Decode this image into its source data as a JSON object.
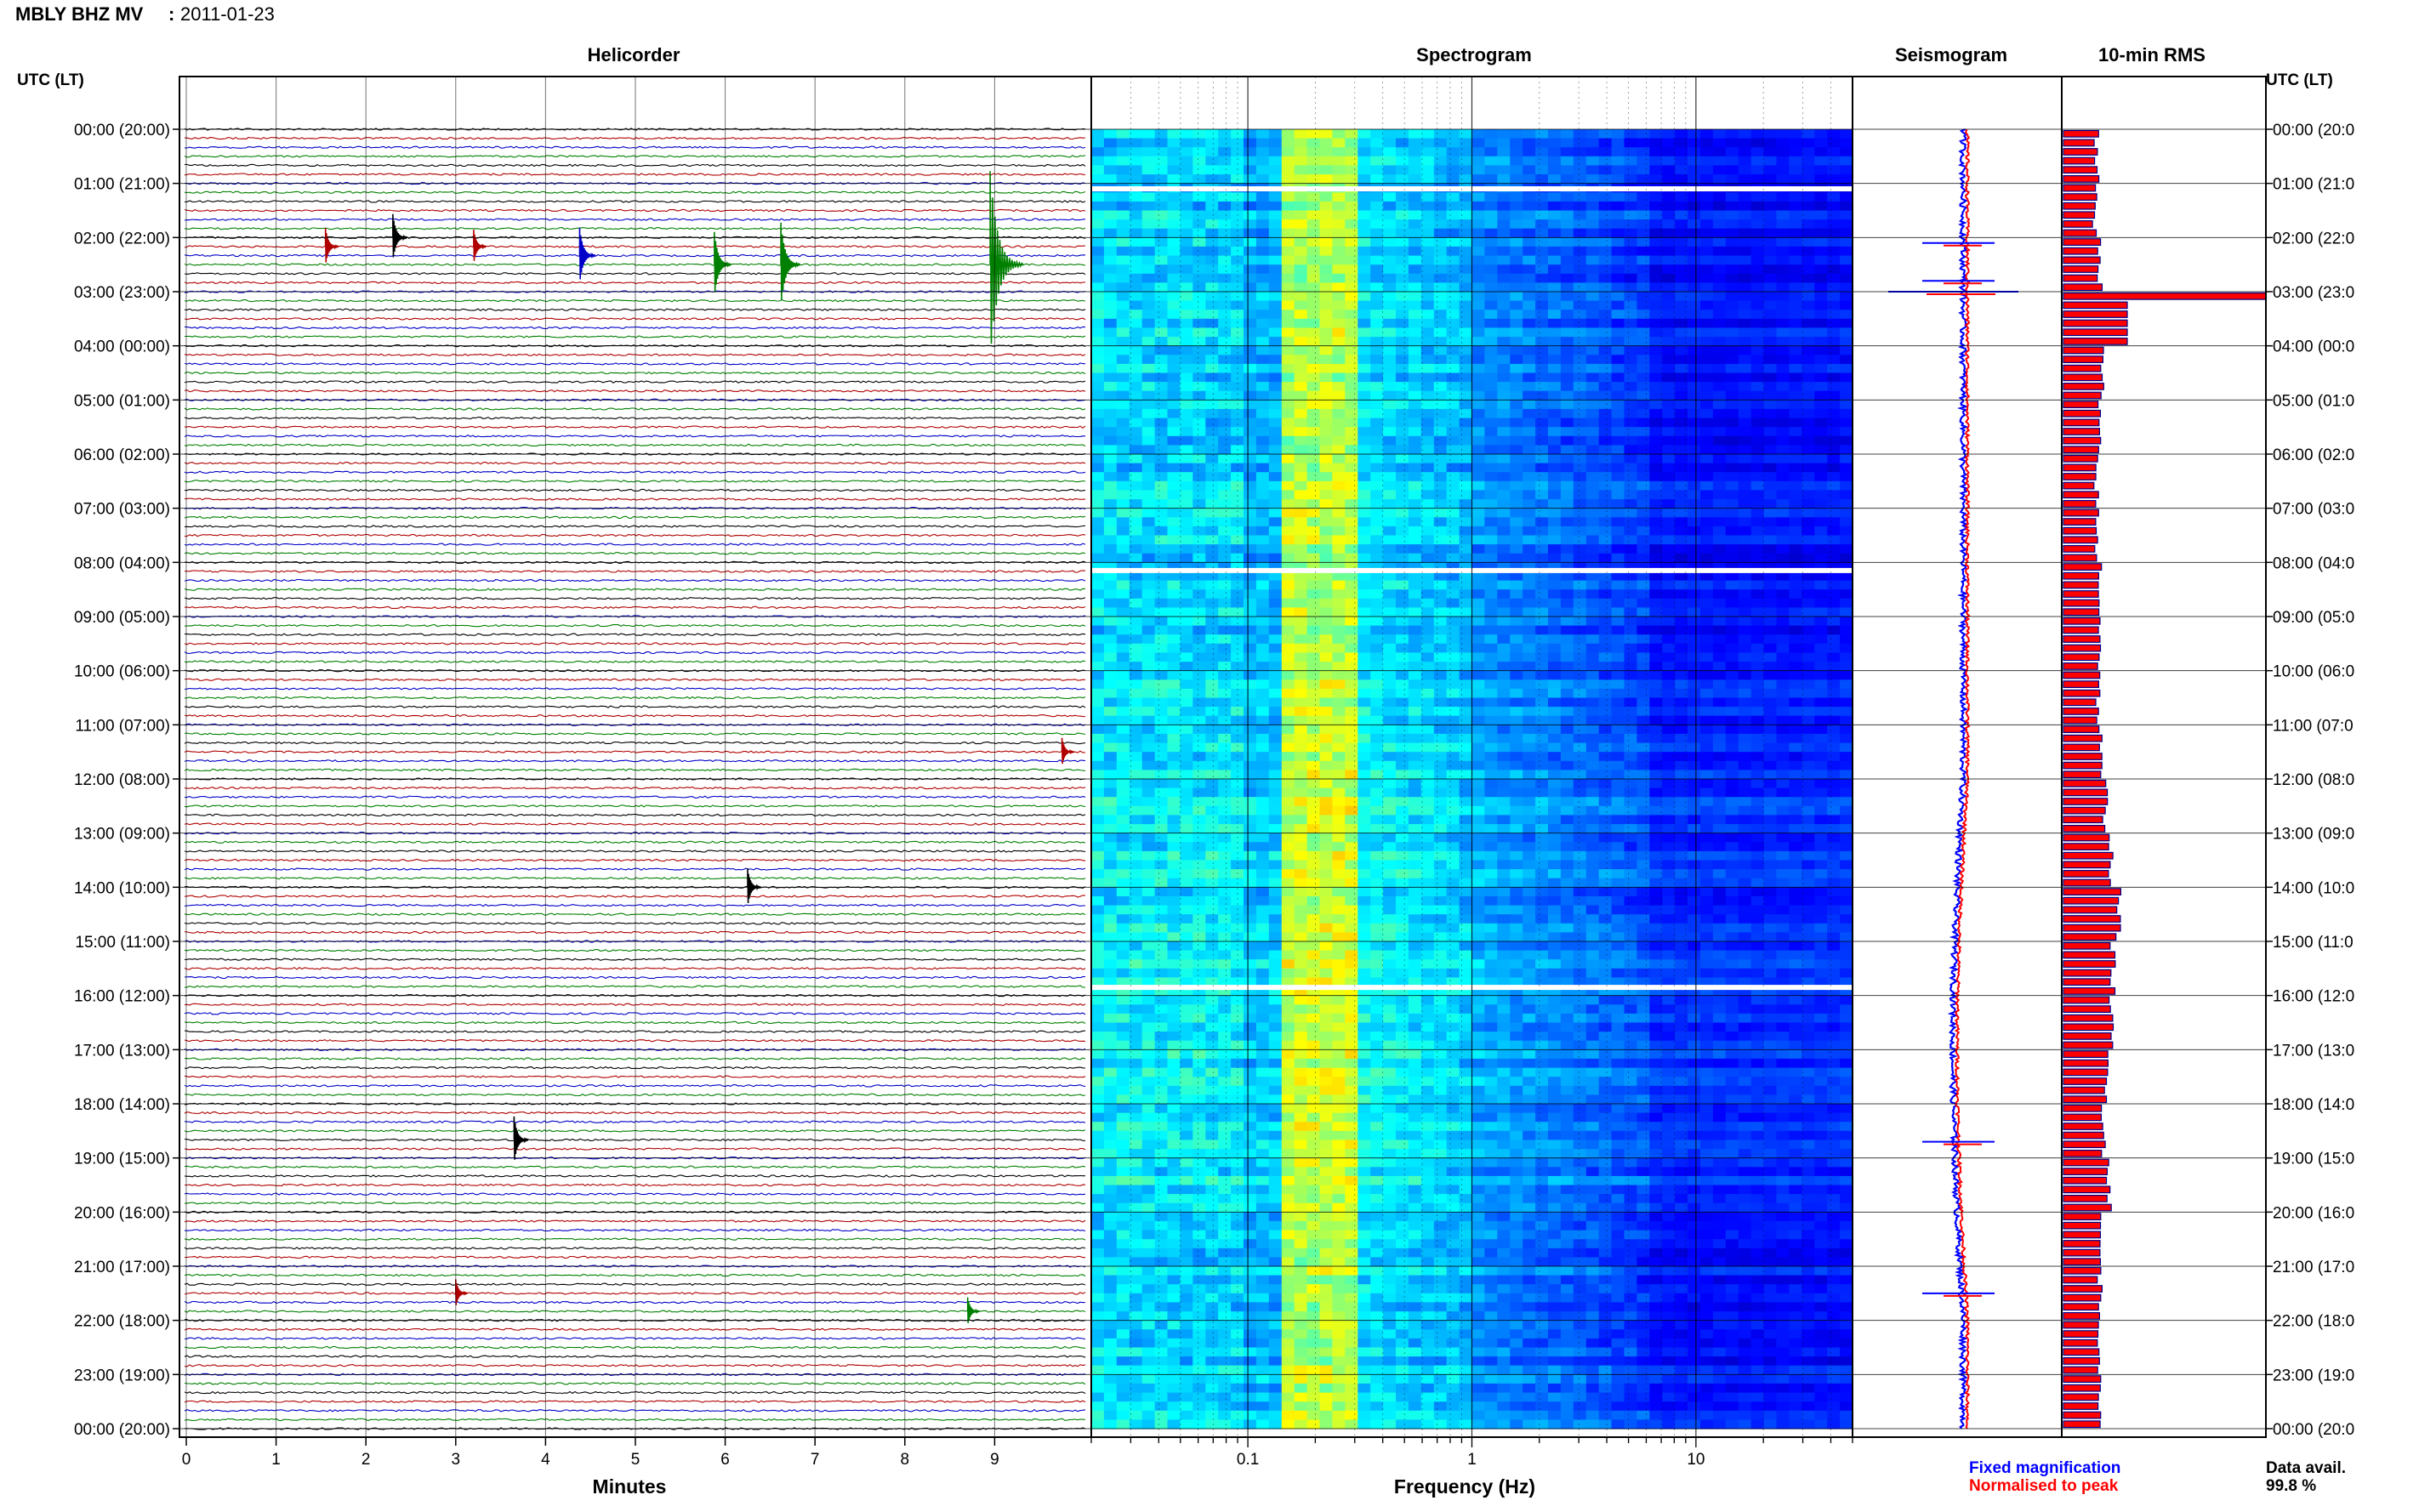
{
  "header": {
    "station": "MBLY BHZ MV",
    "separator": ":",
    "date": "2011-01-23"
  },
  "time_axis_label_left": "UTC (LT)",
  "time_axis_label_right": "UTC (LT)",
  "panels": {
    "helicorder": "Helicorder",
    "spectrogram": "Spectrogram",
    "seismogram": "Seismogram",
    "rms": "10-min RMS"
  },
  "footer": {
    "minutes_label": "Minutes",
    "frequency_label": "Frequency (Hz)",
    "legend_fixed": "Fixed magnification",
    "legend_normalised": "Normalised to peak",
    "data_avail_label": "Data avail.",
    "data_avail_value": "99.8 %"
  },
  "colors": {
    "trace_black": "#000000",
    "trace_red": "#b00000",
    "trace_blue": "#0000c8",
    "trace_green": "#008000",
    "fixed_magnification": "#0000ff",
    "normalised": "#ff0000",
    "rms_fill": "#ff0000",
    "rms_edge": "#00008b"
  },
  "chart_data": [
    {
      "type": "line",
      "panel": "Helicorder",
      "title": "Helicorder",
      "xlabel": "Minutes",
      "x_ticks": [
        "0",
        "1",
        "2",
        "3",
        "4",
        "5",
        "6",
        "7",
        "8",
        "9"
      ],
      "xlim": [
        0,
        10
      ],
      "time_labels_left": [
        "00:00 (20:00)",
        "01:00 (21:00)",
        "02:00 (22:00)",
        "03:00 (23:00)",
        "04:00 (00:00)",
        "05:00 (01:00)",
        "06:00 (02:00)",
        "07:00 (03:00)",
        "08:00 (04:00)",
        "09:00 (05:00)",
        "10:00 (06:00)",
        "11:00 (07:00)",
        "12:00 (08:00)",
        "13:00 (09:00)",
        "14:00 (10:00)",
        "15:00 (11:00)",
        "16:00 (12:00)",
        "17:00 (13:00)",
        "18:00 (14:00)",
        "19:00 (15:00)",
        "20:00 (16:00)",
        "21:00 (17:00)",
        "22:00 (18:00)",
        "23:00 (19:00)",
        "00:00 (20:00)"
      ],
      "time_labels_right": [
        "00:00 (20:0",
        "01:00 (21:0",
        "02:00 (22:0",
        "03:00 (23:0",
        "04:00 (00:0",
        "05:00 (01:0",
        "06:00 (02:0",
        "07:00 (03:0",
        "08:00 (04:0",
        "09:00 (05:0",
        "10:00 (06:0",
        "11:00 (07:0",
        "12:00 (08:0",
        "13:00 (09:0",
        "14:00 (10:0",
        "15:00 (11:0",
        "16:00 (12:0",
        "17:00 (13:0",
        "18:00 (14:0",
        "19:00 (15:0",
        "20:00 (16:0",
        "21:00 (17:0",
        "22:00 (18:0",
        "23:00 (19:0",
        "00:00 (20:0"
      ],
      "lines_per_hour": 6,
      "minutes_per_line": 10,
      "trace_color_cycle": [
        "black",
        "red",
        "blue",
        "green"
      ],
      "events": [
        {
          "hour": 2.45,
          "minute": 8.95,
          "amp": 1.0
        },
        {
          "hour": 2.45,
          "minute": 6.62,
          "amp": 0.45
        },
        {
          "hour": 2.45,
          "minute": 5.88,
          "amp": 0.35
        },
        {
          "hour": 2.28,
          "minute": 4.38,
          "amp": 0.3
        },
        {
          "hour": 2.0,
          "minute": 2.3,
          "amp": 0.25
        },
        {
          "hour": 2.12,
          "minute": 1.55,
          "amp": 0.2
        },
        {
          "hour": 2.12,
          "minute": 3.2,
          "amp": 0.18
        },
        {
          "hour": 18.65,
          "minute": 3.65,
          "amp": 0.25
        },
        {
          "hour": 13.95,
          "minute": 6.25,
          "amp": 0.2
        },
        {
          "hour": 11.55,
          "minute": 9.75,
          "amp": 0.15
        },
        {
          "hour": 21.45,
          "minute": 3.0,
          "amp": 0.15
        },
        {
          "hour": 21.78,
          "minute": 8.7,
          "amp": 0.15
        }
      ]
    },
    {
      "type": "heatmap",
      "panel": "Spectrogram",
      "title": "Spectrogram",
      "xlabel": "Frequency (Hz)",
      "x_scale": "log",
      "xlim": [
        0.02,
        50
      ],
      "x_tick_labels": [
        "0.1",
        "1",
        "10"
      ],
      "colormap": "jet",
      "dominant_band_hz": [
        0.15,
        0.3
      ],
      "gaps_hours": [
        1.1,
        8.15,
        15.85
      ]
    },
    {
      "type": "line",
      "panel": "Seismogram",
      "title": "Seismogram",
      "series": [
        {
          "name": "Fixed magnification",
          "color": "#0000ff"
        },
        {
          "name": "Normalised to peak",
          "color": "#ff0000"
        }
      ],
      "spike_hours": [
        2.1,
        2.8,
        3.0,
        18.7,
        21.5
      ]
    },
    {
      "type": "bar",
      "panel": "10-min RMS",
      "title": "10-min RMS",
      "orientation": "horizontal",
      "categories": [
        "00:00",
        "01:00",
        "02:00",
        "03:00",
        "04:00",
        "05:00",
        "06:00",
        "07:00",
        "08:00",
        "09:00",
        "10:00",
        "11:00",
        "12:00",
        "13:00",
        "14:00",
        "15:00",
        "16:00",
        "17:00",
        "18:00",
        "19:00",
        "20:00",
        "21:00",
        "22:00",
        "23:00"
      ],
      "values": [
        0.18,
        0.17,
        0.2,
        1.0,
        0.21,
        0.19,
        0.18,
        0.18,
        0.2,
        0.2,
        0.19,
        0.2,
        0.23,
        0.26,
        0.3,
        0.27,
        0.26,
        0.24,
        0.22,
        0.25,
        0.2,
        0.2,
        0.2,
        0.19
      ],
      "xlim": [
        0,
        1
      ]
    }
  ]
}
